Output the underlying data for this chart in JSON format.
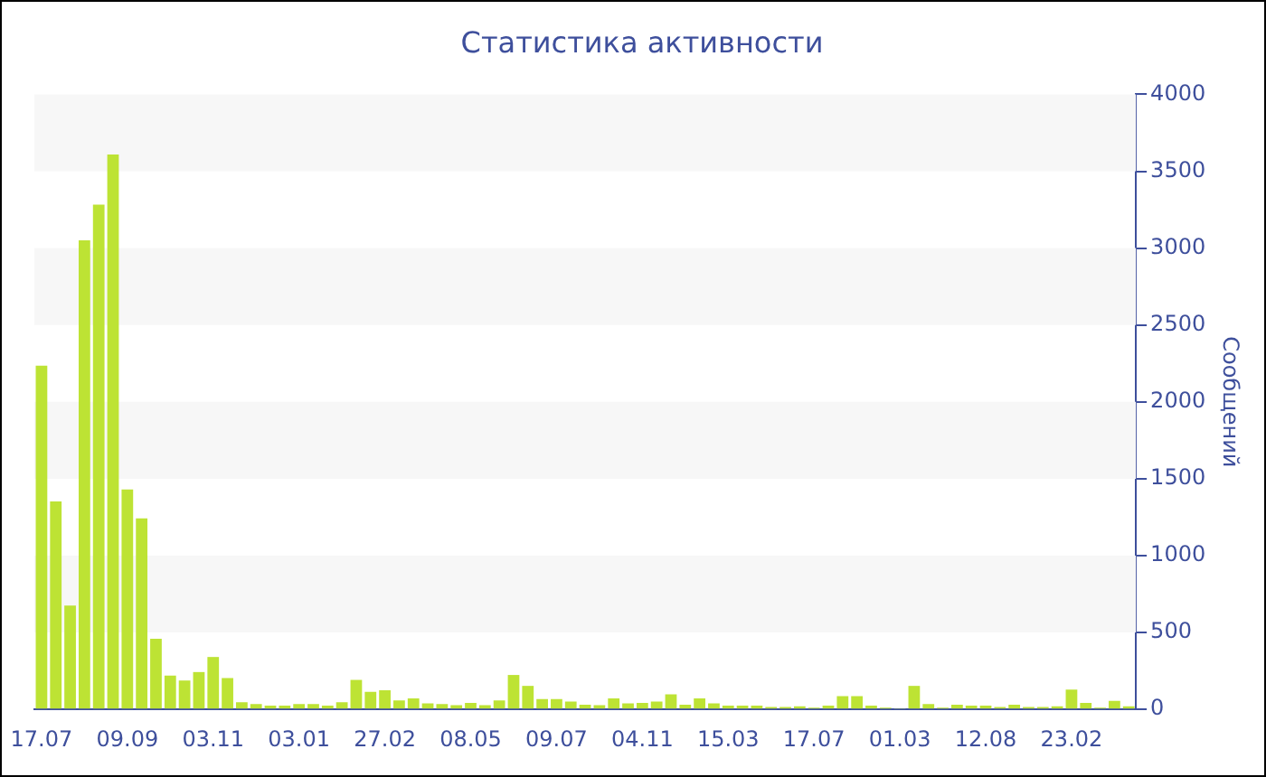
{
  "chart_data": {
    "type": "bar",
    "title": "Статистика активности",
    "ylabel": "Сообщений",
    "categories": [
      "17.07",
      null,
      null,
      null,
      null,
      null,
      "09.09",
      null,
      null,
      null,
      null,
      null,
      "03.11",
      null,
      null,
      null,
      null,
      null,
      "03.01",
      null,
      null,
      null,
      null,
      null,
      "27.02",
      null,
      null,
      null,
      null,
      null,
      "08.05",
      null,
      null,
      null,
      null,
      null,
      "09.07",
      null,
      null,
      null,
      null,
      null,
      "04.11",
      null,
      null,
      null,
      null,
      null,
      "15.03",
      null,
      null,
      null,
      null,
      null,
      "17.07",
      null,
      null,
      null,
      null,
      null,
      "01.03",
      null,
      null,
      null,
      null,
      null,
      "12.08",
      null,
      null,
      null,
      null,
      null,
      "23.02",
      null,
      null,
      null,
      null
    ],
    "values": [
      2235,
      1353,
      675,
      3050,
      3282,
      3608,
      1431,
      1243,
      459,
      220,
      188,
      243,
      341,
      204,
      47,
      35,
      25,
      25,
      35,
      35,
      25,
      47,
      192,
      114,
      125,
      59,
      71,
      39,
      35,
      27,
      43,
      27,
      59,
      224,
      153,
      67,
      67,
      51,
      31,
      27,
      71,
      39,
      43,
      51,
      98,
      31,
      71,
      39,
      24,
      24,
      24,
      16,
      16,
      20,
      12,
      24,
      86,
      86,
      24,
      12,
      4,
      153,
      35,
      12,
      31,
      24,
      24,
      16,
      31,
      16,
      16,
      20,
      129,
      43,
      12,
      55,
      20
    ],
    "color": "#bde334",
    "ylim": [
      0,
      4000
    ],
    "yticks": [
      0,
      500,
      1000,
      1500,
      2000,
      2500,
      3000,
      3500,
      4000
    ],
    "bands": [
      {
        "axis": "y",
        "from": 500,
        "to": 1000,
        "color": "#f7f7f7"
      },
      {
        "axis": "y",
        "from": 1500,
        "to": 2000,
        "color": "#f7f7f7"
      },
      {
        "axis": "y",
        "from": 2500,
        "to": 3000,
        "color": "#f7f7f7"
      },
      {
        "axis": "y",
        "from": 3500,
        "to": 4000,
        "color": "#f7f7f7"
      }
    ],
    "grid": false,
    "legend": false
  }
}
